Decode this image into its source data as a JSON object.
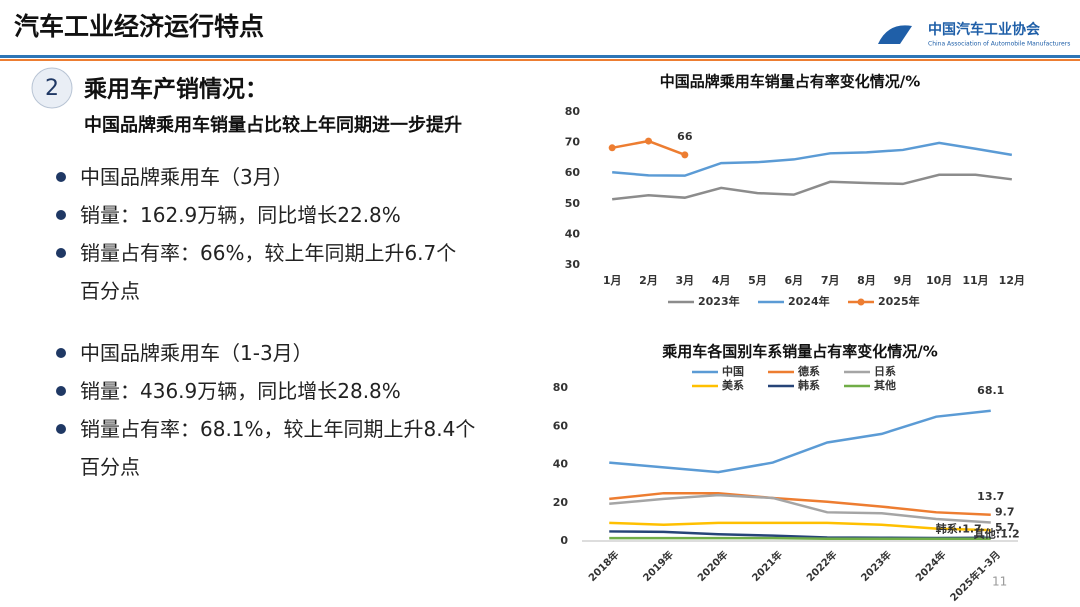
{
  "header": {
    "title": "汽车工业经济运行特点",
    "logo_text": "中国汽车工业协会",
    "logo_subtext": "China Association of Automobile Manufacturers"
  },
  "section": {
    "number": "2",
    "title": "乘用车产销情况：",
    "subtitle": "中国品牌乘用车销量占比较上年同期进一步提升"
  },
  "bullets": [
    [
      "中国品牌乘用车（3月）",
      "销量：162.9万辆，同比增长22.8%",
      "销量占有率：66%，较上年同期上升6.7个百分点"
    ],
    [
      "中国品牌乘用车（1-3月）",
      "销量：436.9万辆，同比增长28.8%",
      "销量占有率：68.1%，较上年同期上升8.4个百分点"
    ]
  ],
  "page_number": "11",
  "chart_data": [
    {
      "type": "line",
      "title": "中国品牌乘用车销量占有率变化情况/%",
      "categories": [
        "1月",
        "2月",
        "3月",
        "4月",
        "5月",
        "6月",
        "7月",
        "8月",
        "9月",
        "10月",
        "11月",
        "12月"
      ],
      "ylim": [
        30,
        80
      ],
      "yticks": [
        30,
        40,
        50,
        60,
        70,
        80
      ],
      "grid": false,
      "legend": "bottom",
      "series": [
        {
          "name": "2023年",
          "color": "#8c8c8c",
          "values": [
            51.5,
            52.8,
            52,
            55.2,
            53.5,
            53,
            57.2,
            56.8,
            56.5,
            59.5,
            59.5,
            58
          ]
        },
        {
          "name": "2024年",
          "color": "#5b9bd5",
          "values": [
            60.3,
            59.3,
            59.2,
            63.3,
            63.6,
            64.5,
            66.5,
            66.8,
            67.6,
            69.9,
            68,
            66
          ]
        },
        {
          "name": "2025年",
          "color": "#ed7d31",
          "marker": true,
          "values": [
            68.3,
            70.5,
            66,
            null,
            null,
            null,
            null,
            null,
            null,
            null,
            null,
            null
          ],
          "value_labels": [
            null,
            null,
            "66",
            null,
            null,
            null,
            null,
            null,
            null,
            null,
            null,
            null
          ]
        }
      ]
    },
    {
      "type": "line",
      "title": "乘用车各国别车系销量占有率变化情况/%",
      "categories": [
        "2018年",
        "2019年",
        "2020年",
        "2021年",
        "2022年",
        "2023年",
        "2024年",
        "2025年1-3月"
      ],
      "ylim": [
        0,
        80
      ],
      "yticks": [
        0,
        20,
        40,
        60,
        80
      ],
      "grid": false,
      "legend": "top",
      "series": [
        {
          "name": "中国",
          "color": "#5b9bd5",
          "values": [
            41,
            38.5,
            36,
            41,
            51.5,
            56,
            65,
            68.1
          ],
          "value_labels": [
            null,
            null,
            null,
            null,
            null,
            null,
            null,
            "68.1"
          ]
        },
        {
          "name": "德系",
          "color": "#ed7d31",
          "values": [
            22,
            25,
            25,
            22.5,
            20.5,
            18,
            15,
            13.7
          ],
          "value_labels": [
            null,
            null,
            null,
            null,
            null,
            null,
            null,
            "13.7"
          ]
        },
        {
          "name": "日系",
          "color": "#a5a5a5",
          "values": [
            19.5,
            22,
            24,
            22.5,
            15,
            14.5,
            11.5,
            9.7
          ],
          "value_labels": [
            null,
            null,
            null,
            null,
            null,
            null,
            null,
            "9.7"
          ]
        },
        {
          "name": "美系",
          "color": "#ffc000",
          "values": [
            9.5,
            8.5,
            9.5,
            9.5,
            9.5,
            8.5,
            6.5,
            5.7
          ],
          "value_labels": [
            null,
            null,
            null,
            null,
            null,
            null,
            null,
            "5.7"
          ]
        },
        {
          "name": "韩系",
          "color": "#264478",
          "values": [
            5,
            4.8,
            3.5,
            2.8,
            1.8,
            1.7,
            1.6,
            1.7
          ],
          "value_labels": [
            null,
            null,
            null,
            null,
            null,
            null,
            null,
            "韩系:1.7"
          ]
        },
        {
          "name": "其他",
          "color": "#70ad47",
          "values": [
            1.5,
            1.5,
            1.5,
            1.5,
            1.2,
            1.2,
            1.2,
            1.2
          ],
          "value_labels": [
            null,
            null,
            null,
            null,
            null,
            null,
            null,
            "其他:1.2"
          ]
        }
      ]
    }
  ]
}
